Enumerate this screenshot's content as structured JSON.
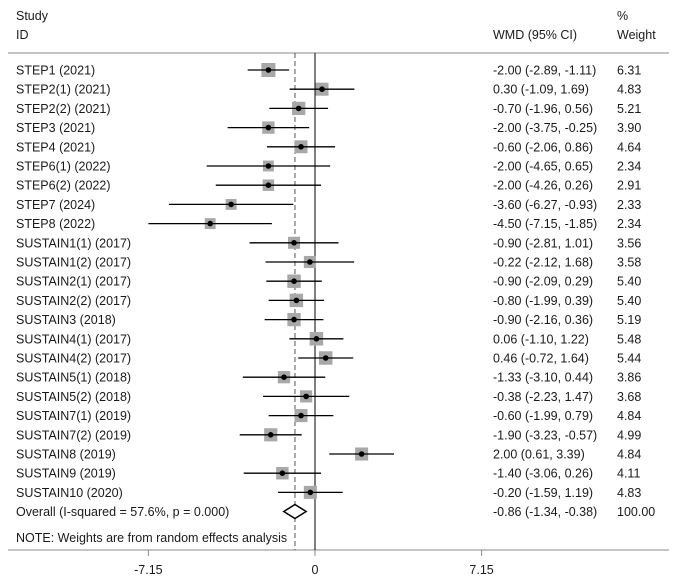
{
  "chart_data": {
    "type": "forest",
    "header": {
      "study_line1": "Study",
      "study_line2": "ID",
      "effect": "WMD (95% CI)",
      "weight_line1": "%",
      "weight_line2": "Weight"
    },
    "studies": [
      {
        "label": "STEP1 (2021)",
        "est": -2.0,
        "lo": -2.89,
        "hi": -1.11,
        "ci": "-2.00 (-2.89, -1.11)",
        "weight": "6.31"
      },
      {
        "label": "STEP2(1) (2021)",
        "est": 0.3,
        "lo": -1.09,
        "hi": 1.69,
        "ci": "0.30 (-1.09, 1.69)",
        "weight": "4.83"
      },
      {
        "label": "STEP2(2) (2021)",
        "est": -0.7,
        "lo": -1.96,
        "hi": 0.56,
        "ci": "-0.70 (-1.96, 0.56)",
        "weight": "5.21"
      },
      {
        "label": "STEP3 (2021)",
        "est": -2.0,
        "lo": -3.75,
        "hi": -0.25,
        "ci": "-2.00 (-3.75, -0.25)",
        "weight": "3.90"
      },
      {
        "label": "STEP4 (2021)",
        "est": -0.6,
        "lo": -2.06,
        "hi": 0.86,
        "ci": "-0.60 (-2.06, 0.86)",
        "weight": "4.64"
      },
      {
        "label": "STEP6(1) (2022)",
        "est": -2.0,
        "lo": -4.65,
        "hi": 0.65,
        "ci": "-2.00 (-4.65, 0.65)",
        "weight": "2.34"
      },
      {
        "label": "STEP6(2) (2022)",
        "est": -2.0,
        "lo": -4.26,
        "hi": 0.26,
        "ci": "-2.00 (-4.26, 0.26)",
        "weight": "2.91"
      },
      {
        "label": "STEP7 (2024)",
        "est": -3.6,
        "lo": -6.27,
        "hi": -0.93,
        "ci": "-3.60 (-6.27, -0.93)",
        "weight": "2.33"
      },
      {
        "label": "STEP8 (2022)",
        "est": -4.5,
        "lo": -7.15,
        "hi": -1.85,
        "ci": "-4.50 (-7.15, -1.85)",
        "weight": "2.34"
      },
      {
        "label": "SUSTAIN1(1) (2017)",
        "est": -0.9,
        "lo": -2.81,
        "hi": 1.01,
        "ci": "-0.90 (-2.81, 1.01)",
        "weight": "3.56"
      },
      {
        "label": "SUSTAIN1(2) (2017)",
        "est": -0.22,
        "lo": -2.12,
        "hi": 1.68,
        "ci": "-0.22 (-2.12, 1.68)",
        "weight": "3.58"
      },
      {
        "label": "SUSTAIN2(1) (2017)",
        "est": -0.9,
        "lo": -2.09,
        "hi": 0.29,
        "ci": "-0.90 (-2.09, 0.29)",
        "weight": "5.40"
      },
      {
        "label": "SUSTAIN2(2) (2017)",
        "est": -0.8,
        "lo": -1.99,
        "hi": 0.39,
        "ci": "-0.80 (-1.99, 0.39)",
        "weight": "5.40"
      },
      {
        "label": "SUSTAIN3 (2018)",
        "est": -0.9,
        "lo": -2.16,
        "hi": 0.36,
        "ci": "-0.90 (-2.16, 0.36)",
        "weight": "5.19"
      },
      {
        "label": "SUSTAIN4(1) (2017)",
        "est": 0.06,
        "lo": -1.1,
        "hi": 1.22,
        "ci": "0.06 (-1.10, 1.22)",
        "weight": "5.48"
      },
      {
        "label": "SUSTAIN4(2) (2017)",
        "est": 0.46,
        "lo": -0.72,
        "hi": 1.64,
        "ci": "0.46 (-0.72, 1.64)",
        "weight": "5.44"
      },
      {
        "label": "SUSTAIN5(1) (2018)",
        "est": -1.33,
        "lo": -3.1,
        "hi": 0.44,
        "ci": "-1.33 (-3.10, 0.44)",
        "weight": "3.86"
      },
      {
        "label": "SUSTAIN5(2) (2018)",
        "est": -0.38,
        "lo": -2.23,
        "hi": 1.47,
        "ci": "-0.38 (-2.23, 1.47)",
        "weight": "3.68"
      },
      {
        "label": "SUSTAIN7(1) (2019)",
        "est": -0.6,
        "lo": -1.99,
        "hi": 0.79,
        "ci": "-0.60 (-1.99, 0.79)",
        "weight": "4.84"
      },
      {
        "label": "SUSTAIN7(2) (2019)",
        "est": -1.9,
        "lo": -3.23,
        "hi": -0.57,
        "ci": "-1.90 (-3.23, -0.57)",
        "weight": "4.99"
      },
      {
        "label": "SUSTAIN8 (2019)",
        "est": 2.0,
        "lo": 0.61,
        "hi": 3.39,
        "ci": "2.00 (0.61, 3.39)",
        "weight": "4.84"
      },
      {
        "label": "SUSTAIN9 (2019)",
        "est": -1.4,
        "lo": -3.06,
        "hi": 0.26,
        "ci": "-1.40 (-3.06, 0.26)",
        "weight": "4.11"
      },
      {
        "label": "SUSTAIN10 (2020)",
        "est": -0.2,
        "lo": -1.59,
        "hi": 1.19,
        "ci": "-0.20 (-1.59, 1.19)",
        "weight": "4.83"
      }
    ],
    "overall": {
      "label": "Overall  (I-squared = 57.6%, p = 0.000)",
      "est": -0.86,
      "lo": -1.34,
      "hi": -0.38,
      "ci": "-0.86 (-1.34, -0.38)",
      "weight": "100.00"
    },
    "note": "NOTE: Weights are from random effects analysis",
    "xlim": [
      -7.15,
      7.15
    ],
    "xticks": [
      -7.15,
      0,
      7.15
    ],
    "xtick_labels": [
      "-7.15",
      "0",
      "7.15"
    ],
    "colors": {
      "box": "#a8a8a8",
      "line": "#000000",
      "overall_line": "#555555",
      "rule": "#8a8a8a"
    }
  }
}
